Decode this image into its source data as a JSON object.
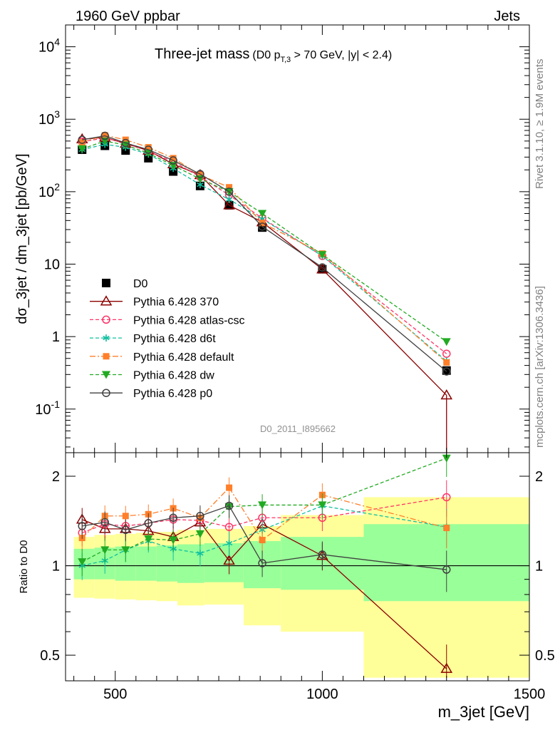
{
  "header": {
    "left": "1960 GeV ppbar",
    "right": "Jets",
    "title_main": "Three-jet mass",
    "title_sub": "(D0 p",
    "title_sub_idx": "T,3",
    "title_sub_end": " > 70 GeV, |y| < 2.4)"
  },
  "side": {
    "rivet": "Rivet 3.1.10, ≥ 1.9M events",
    "mcplots": "mcplots.cern.ch [arXiv:1306.3436]"
  },
  "analysis_tag": "D0_2011_I895662",
  "chart_data": [
    {
      "type": "line",
      "panel": "main",
      "ylabel": "dσ_3jet / dm_3jet [pb/GeV]",
      "yscale": "log",
      "ylim": [
        0.025,
        20000
      ],
      "xlim": [
        380,
        1500
      ],
      "ytick_labels": [
        "10^-1",
        "1",
        "10",
        "10^2",
        "10^3",
        "10^4"
      ],
      "x": [
        420,
        475,
        525,
        580,
        640,
        705,
        775,
        855,
        1000,
        1300
      ],
      "series": [
        {
          "name": "D0",
          "style": "data",
          "color": "#000000",
          "values": [
            380,
            430,
            370,
            290,
            190,
            120,
            65,
            32,
            8.5,
            0.34
          ],
          "errors": [
            25,
            25,
            20,
            15,
            10,
            7,
            4,
            2,
            0.6,
            0.04
          ]
        },
        {
          "name": "Pythia 6.428 370",
          "style": "triangle",
          "color": "#8B0000",
          "values": [
            530,
            560,
            460,
            370,
            240,
            170,
            65,
            38,
            8.5,
            0.155
          ]
        },
        {
          "name": "Pythia 6.428 atlas-csc",
          "style": "circle-dashed",
          "color": "#ff3366",
          "values": [
            490,
            550,
            470,
            360,
            260,
            160,
            90,
            43,
            13,
            0.58
          ]
        },
        {
          "name": "Pythia 6.428 d6t",
          "style": "star-dashed",
          "color": "#10c0a0",
          "values": [
            380,
            450,
            410,
            330,
            210,
            125,
            78,
            42,
            13,
            0.46
          ]
        },
        {
          "name": "Pythia 6.428 default",
          "style": "square-dashdot",
          "color": "#ff7f2a",
          "values": [
            480,
            600,
            520,
            410,
            290,
            170,
            115,
            37,
            14,
            0.44
          ]
        },
        {
          "name": "Pythia 6.428 dw",
          "style": "tri-down-dashed",
          "color": "#22aa22",
          "values": [
            390,
            500,
            440,
            340,
            230,
            150,
            100,
            50,
            13.5,
            0.85
          ]
        },
        {
          "name": "Pythia 6.428 p0",
          "style": "circle-solid",
          "color": "#404040",
          "values": [
            520,
            590,
            470,
            380,
            270,
            175,
            100,
            33,
            9.0,
            0.33
          ]
        }
      ]
    },
    {
      "type": "line",
      "panel": "ratio",
      "ylabel": "Ratio to D0",
      "xlabel": "m_3jet [GeV]",
      "yscale": "log",
      "ylim": [
        0.41,
        2.4
      ],
      "ytick_labels": [
        "0.5",
        "1",
        "2"
      ],
      "xtick_labels": [
        "500",
        "1000",
        "1500"
      ],
      "bands": {
        "edges": [
          400,
          450,
          500,
          550,
          600,
          650,
          715,
          810,
          900,
          1100,
          1500
        ],
        "inner_low": [
          0.9,
          0.9,
          0.89,
          0.89,
          0.885,
          0.875,
          0.88,
          0.84,
          0.83,
          0.76
        ],
        "inner_high": [
          1.14,
          1.15,
          1.16,
          1.16,
          1.17,
          1.18,
          1.19,
          1.21,
          1.25,
          1.38
        ],
        "outer_low": [
          0.78,
          0.775,
          0.77,
          0.765,
          0.76,
          0.735,
          0.74,
          0.63,
          0.6,
          0.42
        ],
        "outer_high": [
          1.25,
          1.27,
          1.28,
          1.29,
          1.3,
          1.32,
          1.33,
          1.36,
          1.48,
          1.7
        ],
        "inner_color": "#99ff99",
        "outer_color": "#ffff99"
      },
      "series_values": {
        "Pythia 6.428 370": [
          1.43,
          1.33,
          1.33,
          1.31,
          1.25,
          1.4,
          1.04,
          1.38,
          1.08,
          0.45
        ],
        "Pythia 6.428 atlas-csc": [
          1.29,
          1.38,
          1.36,
          1.39,
          1.43,
          1.42,
          1.35,
          1.45,
          1.45,
          1.7
        ],
        "Pythia 6.428 d6t": [
          1.0,
          1.04,
          1.13,
          1.21,
          1.14,
          1.1,
          1.19,
          1.32,
          1.59,
          1.35
        ],
        "Pythia 6.428 default": [
          1.24,
          1.47,
          1.47,
          1.49,
          1.56,
          1.45,
          1.83,
          1.22,
          1.73,
          1.34
        ],
        "Pythia 6.428 dw": [
          1.03,
          1.13,
          1.13,
          1.23,
          1.22,
          1.28,
          1.58,
          1.6,
          1.6,
          2.3
        ],
        "Pythia 6.428 p0": [
          1.36,
          1.4,
          1.32,
          1.39,
          1.45,
          1.47,
          1.59,
          1.02,
          1.09,
          0.97
        ]
      }
    }
  ]
}
